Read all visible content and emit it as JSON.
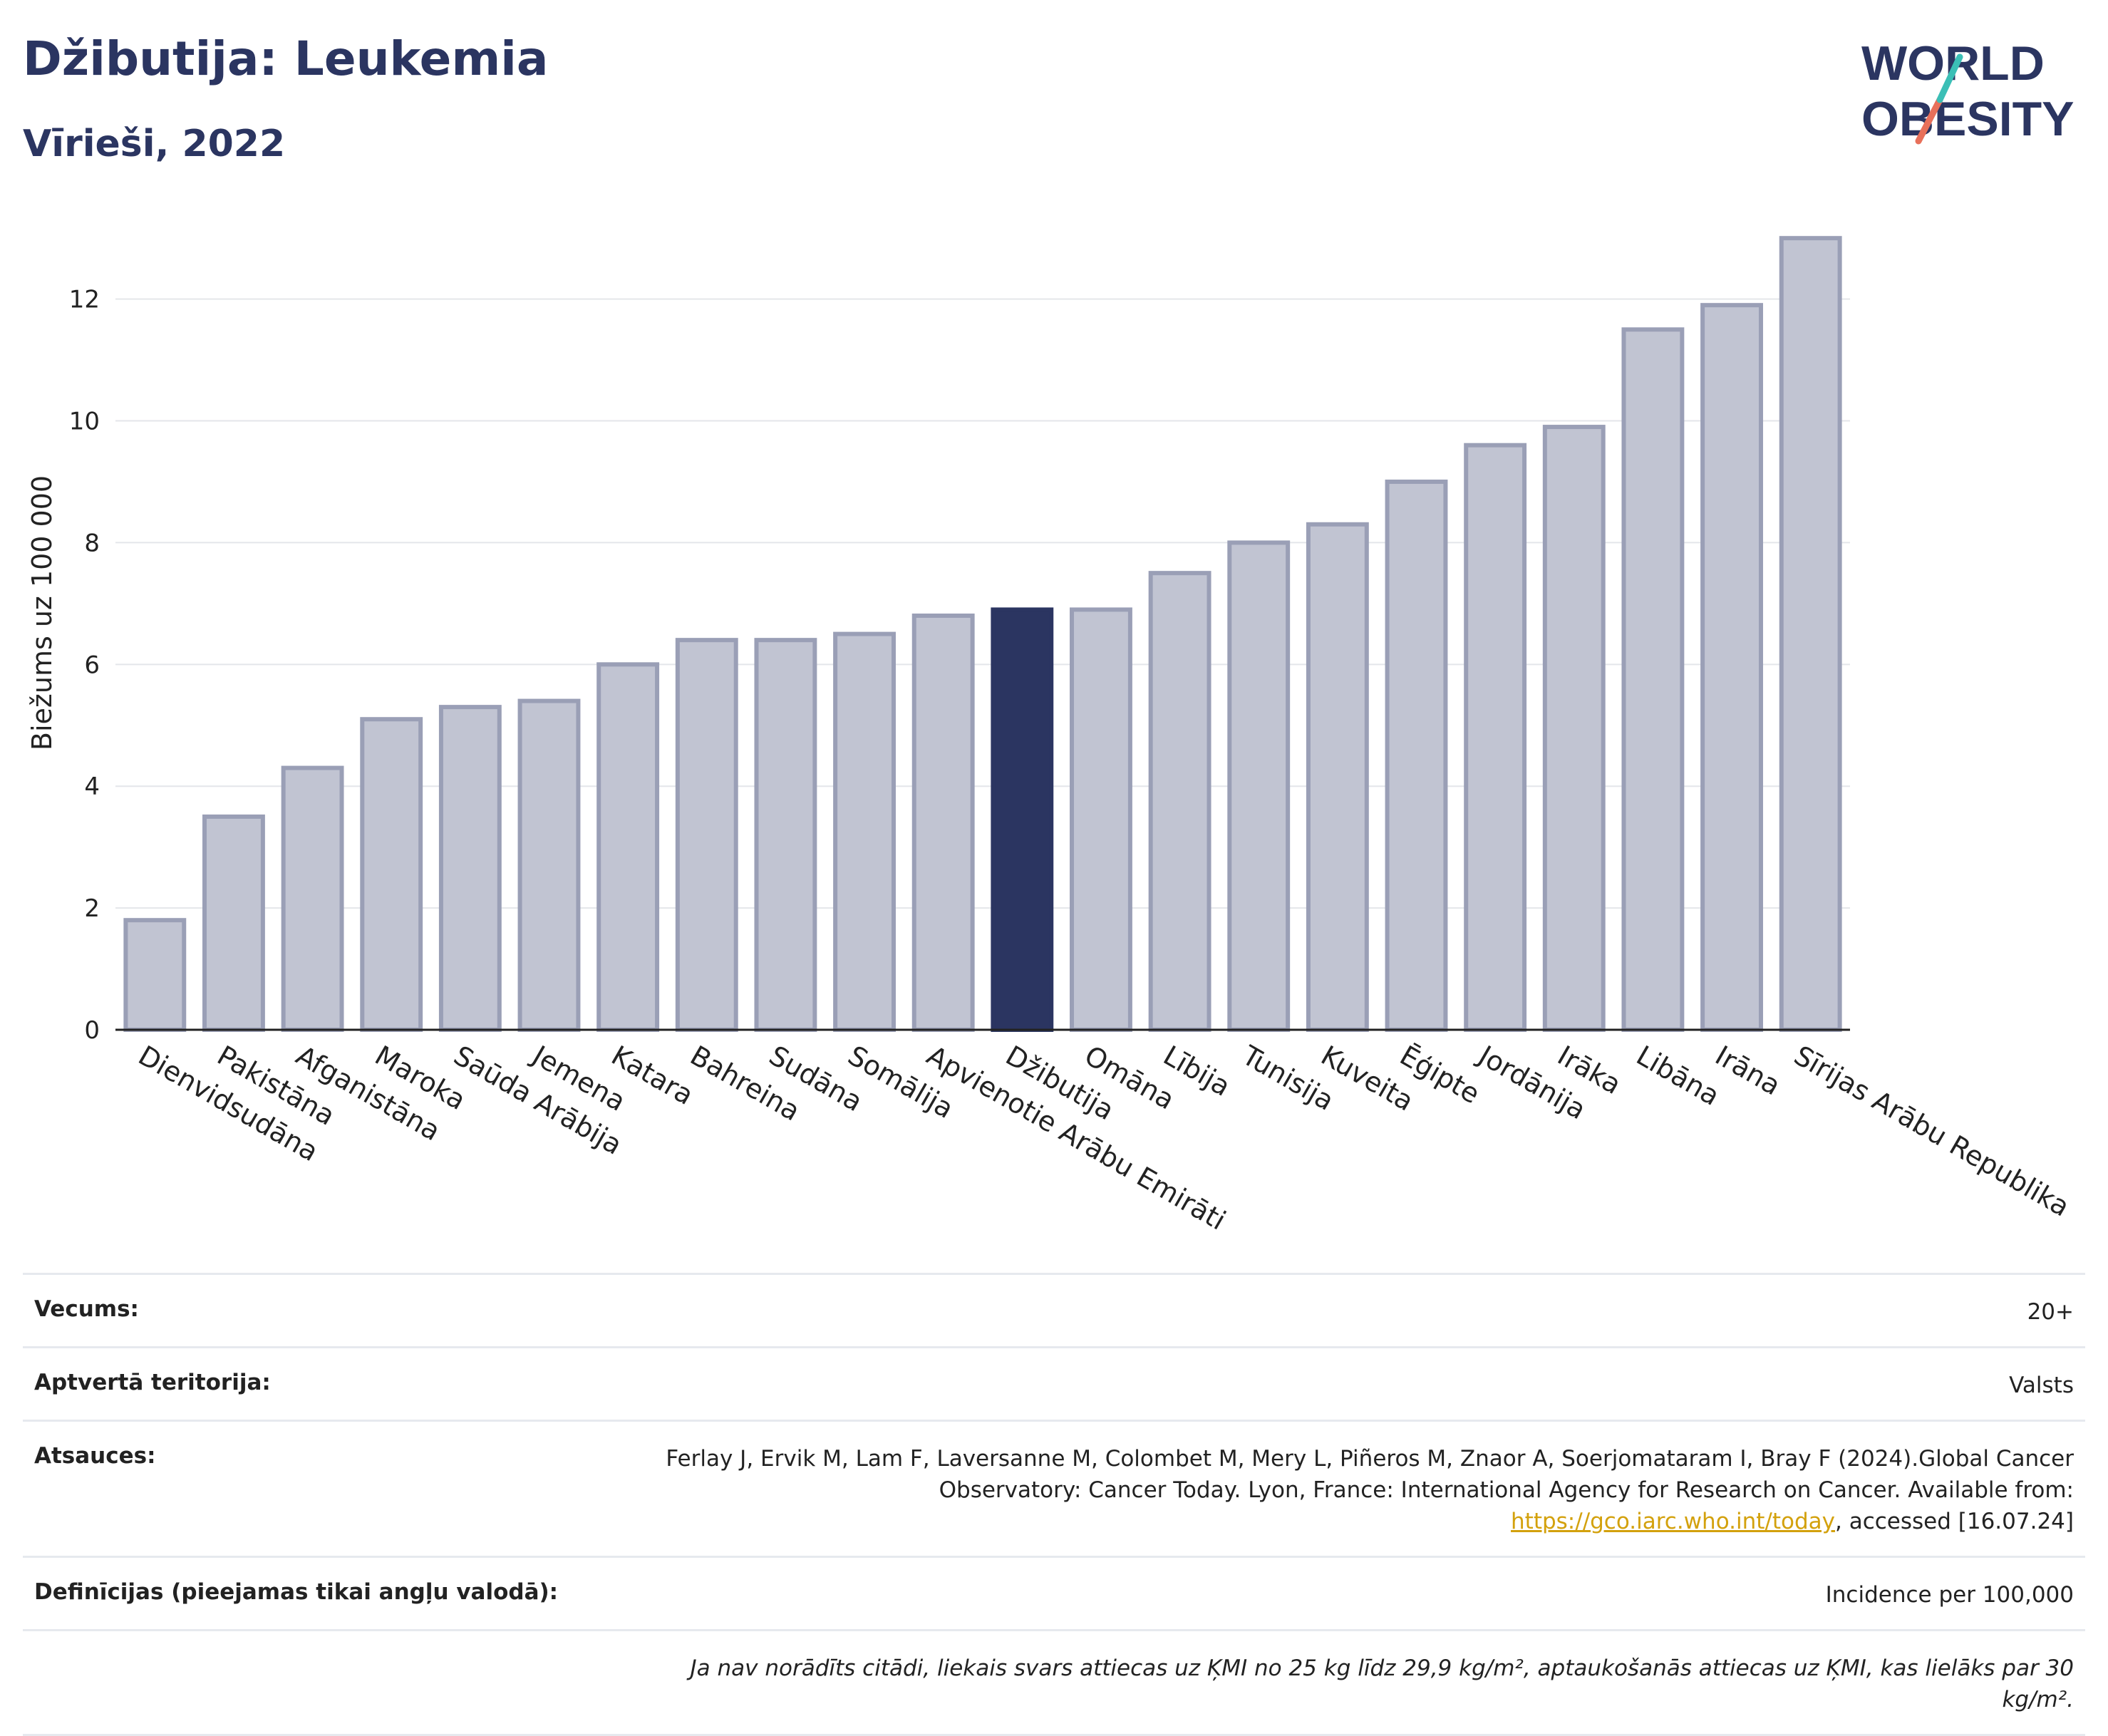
{
  "header": {
    "title": "Džibutija: Leukemia",
    "subtitle": "Vīrieši, 2022"
  },
  "logo": {
    "line1": "WORLD",
    "line2": "OBESITY"
  },
  "chart_data": {
    "type": "bar",
    "ylabel": "Biežums uz 100 000",
    "xlabel": "",
    "ylim": [
      0,
      13.4
    ],
    "yticks": [
      0,
      2,
      4,
      6,
      8,
      10,
      12
    ],
    "grid": true,
    "highlight_category": "Džibutija",
    "colors": {
      "bar": "#c1c4d2",
      "bar_edge": "#9a9fb6",
      "highlight": "#2b3561"
    },
    "categories": [
      "Dienvidsudāna",
      "Pakistāna",
      "Afganistāna",
      "Maroka",
      "Saūda Arābija",
      "Jemena",
      "Katara",
      "Bahreina",
      "Sudāna",
      "Somālija",
      "Apvienotie Arābu Emirāti",
      "Džibutija",
      "Omāna",
      "Lībija",
      "Tunisija",
      "Kuveita",
      "Ēģipte",
      "Jordānija",
      "Irāka",
      "Libāna",
      "Irāna",
      "Sīrijas Arābu Republika"
    ],
    "values": [
      1.8,
      3.5,
      4.3,
      5.1,
      5.3,
      5.4,
      6.0,
      6.4,
      6.4,
      6.5,
      6.8,
      6.9,
      6.9,
      7.5,
      8.0,
      8.3,
      9.0,
      9.6,
      9.9,
      11.5,
      11.9,
      13.0
    ]
  },
  "info": {
    "age_label": "Vecums:",
    "age_value": "20+",
    "territory_label": "Aptvertā teritorija:",
    "territory_value": "Valsts",
    "refs_label": "Atsauces:",
    "refs_text_1": "Ferlay J, Ervik M, Lam F, Laversanne M, Colombet M, Mery L, Piñeros M, Znaor A, Soerjomataram I, Bray F (2024).Global Cancer Observatory: Cancer Today. Lyon, France: International Agency for Research on Cancer. Available from: ",
    "refs_link": "https://gco.iarc.who.int/today",
    "refs_text_2": ", accessed [16.07.24]",
    "defs_label": "Definīcijas (pieejamas tikai angļu valodā):",
    "defs_value": "Incidence per 100,000",
    "note": "Ja nav norādīts citādi, liekais svars attiecas uz ĶMI no 25 kg līdz 29,9 kg/m², aptaukošanās attiecas uz ĶMI, kas lielāks par 30 kg/m²."
  }
}
